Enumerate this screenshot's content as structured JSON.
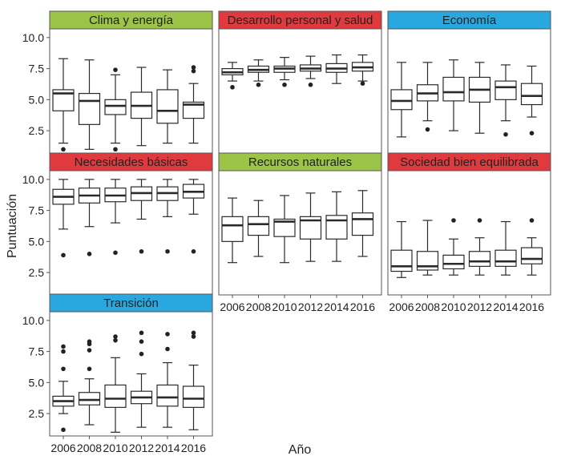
{
  "chart_data": {
    "type": "boxplot",
    "layout": "faceted-grid",
    "xlabel": "Año",
    "ylabel": "Puntuación",
    "x_categories": [
      "2006",
      "2008",
      "2010",
      "2012",
      "2014",
      "2016"
    ],
    "y_ticks": [
      "10.0",
      "7.5",
      "5.0",
      "2.5"
    ],
    "ylim": [
      0.7,
      10.7
    ],
    "colors": {
      "green": "#9bc449",
      "red": "#e03a3e",
      "blue": "#29a8e0",
      "panel_border": "#555555",
      "box_stroke": "#2a2a2a",
      "outlier": "#222222"
    },
    "panels": [
      {
        "title": "Clima y energía",
        "color": "green",
        "boxes": [
          {
            "year": "2006",
            "q1": 4.1,
            "median": 5.5,
            "q3": 5.8,
            "whisker_low": 1.5,
            "whisker_high": 8.3,
            "outliers": [
              1.0
            ]
          },
          {
            "year": "2008",
            "q1": 3.0,
            "median": 4.9,
            "q3": 5.5,
            "whisker_low": 1.0,
            "whisker_high": 8.2,
            "outliers": []
          },
          {
            "year": "2010",
            "q1": 3.8,
            "median": 4.5,
            "q3": 5.0,
            "whisker_low": 1.5,
            "whisker_high": 7.0,
            "outliers": [
              7.4,
              1.0
            ]
          },
          {
            "year": "2012",
            "q1": 3.5,
            "median": 4.5,
            "q3": 5.6,
            "whisker_low": 1.3,
            "whisker_high": 7.6,
            "outliers": []
          },
          {
            "year": "2014",
            "q1": 3.1,
            "median": 4.1,
            "q3": 5.8,
            "whisker_low": 1.5,
            "whisker_high": 7.4,
            "outliers": []
          },
          {
            "year": "2016",
            "q1": 3.5,
            "median": 4.6,
            "q3": 4.8,
            "whisker_low": 1.5,
            "whisker_high": 6.3,
            "outliers": [
              7.3,
              7.6
            ]
          }
        ]
      },
      {
        "title": "Desarrollo personal y salud",
        "color": "red",
        "boxes": [
          {
            "year": "2006",
            "q1": 7.0,
            "median": 7.2,
            "q3": 7.5,
            "whisker_low": 6.5,
            "whisker_high": 8.0,
            "outliers": [
              6.0
            ]
          },
          {
            "year": "2008",
            "q1": 7.2,
            "median": 7.4,
            "q3": 7.7,
            "whisker_low": 6.5,
            "whisker_high": 8.2,
            "outliers": [
              6.2
            ]
          },
          {
            "year": "2010",
            "q1": 7.2,
            "median": 7.5,
            "q3": 7.7,
            "whisker_low": 6.6,
            "whisker_high": 8.4,
            "outliers": [
              6.2
            ]
          },
          {
            "year": "2012",
            "q1": 7.3,
            "median": 7.5,
            "q3": 7.8,
            "whisker_low": 6.7,
            "whisker_high": 8.5,
            "outliers": [
              6.2
            ]
          },
          {
            "year": "2014",
            "q1": 7.2,
            "median": 7.5,
            "q3": 7.9,
            "whisker_low": 6.3,
            "whisker_high": 8.6,
            "outliers": []
          },
          {
            "year": "2016",
            "q1": 7.3,
            "median": 7.6,
            "q3": 8.0,
            "whisker_low": 6.5,
            "whisker_high": 8.6,
            "outliers": [
              6.3
            ]
          }
        ]
      },
      {
        "title": "Economía",
        "color": "blue",
        "boxes": [
          {
            "year": "2006",
            "q1": 4.2,
            "median": 4.9,
            "q3": 5.8,
            "whisker_low": 2.0,
            "whisker_high": 8.0,
            "outliers": []
          },
          {
            "year": "2008",
            "q1": 4.9,
            "median": 5.5,
            "q3": 6.2,
            "whisker_low": 3.3,
            "whisker_high": 8.0,
            "outliers": [
              2.6
            ]
          },
          {
            "year": "2010",
            "q1": 4.9,
            "median": 5.6,
            "q3": 6.8,
            "whisker_low": 2.5,
            "whisker_high": 8.2,
            "outliers": []
          },
          {
            "year": "2012",
            "q1": 4.8,
            "median": 5.8,
            "q3": 6.8,
            "whisker_low": 2.3,
            "whisker_high": 8.0,
            "outliers": []
          },
          {
            "year": "2014",
            "q1": 5.0,
            "median": 6.0,
            "q3": 6.5,
            "whisker_low": 3.3,
            "whisker_high": 7.8,
            "outliers": [
              2.2
            ]
          },
          {
            "year": "2016",
            "q1": 4.6,
            "median": 5.3,
            "q3": 6.3,
            "whisker_low": 3.6,
            "whisker_high": 7.7,
            "outliers": [
              2.3
            ]
          }
        ]
      },
      {
        "title": "Necesidades básicas",
        "color": "red",
        "boxes": [
          {
            "year": "2006",
            "q1": 8.0,
            "median": 8.6,
            "q3": 9.2,
            "whisker_low": 6.0,
            "whisker_high": 10.0,
            "outliers": [
              3.9
            ]
          },
          {
            "year": "2008",
            "q1": 8.1,
            "median": 8.7,
            "q3": 9.3,
            "whisker_low": 6.2,
            "whisker_high": 10.0,
            "outliers": [
              4.0
            ]
          },
          {
            "year": "2010",
            "q1": 8.2,
            "median": 8.7,
            "q3": 9.3,
            "whisker_low": 6.5,
            "whisker_high": 10.0,
            "outliers": [
              4.1
            ]
          },
          {
            "year": "2012",
            "q1": 8.3,
            "median": 8.9,
            "q3": 9.4,
            "whisker_low": 6.8,
            "whisker_high": 10.0,
            "outliers": [
              4.2
            ]
          },
          {
            "year": "2014",
            "q1": 8.3,
            "median": 8.9,
            "q3": 9.4,
            "whisker_low": 7.0,
            "whisker_high": 10.0,
            "outliers": [
              4.2
            ]
          },
          {
            "year": "2016",
            "q1": 8.5,
            "median": 9.0,
            "q3": 9.6,
            "whisker_low": 7.2,
            "whisker_high": 10.0,
            "outliers": [
              4.2
            ]
          }
        ]
      },
      {
        "title": "Recursos naturales",
        "color": "green",
        "boxes": [
          {
            "year": "2006",
            "q1": 5.0,
            "median": 6.3,
            "q3": 7.0,
            "whisker_low": 3.3,
            "whisker_high": 8.5,
            "outliers": []
          },
          {
            "year": "2008",
            "q1": 5.5,
            "median": 6.4,
            "q3": 7.0,
            "whisker_low": 3.8,
            "whisker_high": 8.3,
            "outliers": []
          },
          {
            "year": "2010",
            "q1": 5.4,
            "median": 6.6,
            "q3": 6.8,
            "whisker_low": 3.3,
            "whisker_high": 8.7,
            "outliers": []
          },
          {
            "year": "2012",
            "q1": 5.2,
            "median": 6.7,
            "q3": 7.0,
            "whisker_low": 3.4,
            "whisker_high": 8.9,
            "outliers": []
          },
          {
            "year": "2014",
            "q1": 5.2,
            "median": 6.7,
            "q3": 7.1,
            "whisker_low": 3.4,
            "whisker_high": 9.0,
            "outliers": []
          },
          {
            "year": "2016",
            "q1": 5.5,
            "median": 6.8,
            "q3": 7.3,
            "whisker_low": 3.8,
            "whisker_high": 9.1,
            "outliers": []
          }
        ]
      },
      {
        "title": "Sociedad bien equilibrada",
        "color": "red",
        "boxes": [
          {
            "year": "2006",
            "q1": 2.6,
            "median": 3.0,
            "q3": 4.3,
            "whisker_low": 2.1,
            "whisker_high": 6.6,
            "outliers": []
          },
          {
            "year": "2008",
            "q1": 2.7,
            "median": 3.0,
            "q3": 4.2,
            "whisker_low": 2.3,
            "whisker_high": 6.7,
            "outliers": []
          },
          {
            "year": "2010",
            "q1": 2.8,
            "median": 3.2,
            "q3": 3.9,
            "whisker_low": 2.3,
            "whisker_high": 5.2,
            "outliers": [
              6.7
            ]
          },
          {
            "year": "2012",
            "q1": 3.0,
            "median": 3.4,
            "q3": 4.2,
            "whisker_low": 2.3,
            "whisker_high": 5.3,
            "outliers": [
              6.7
            ]
          },
          {
            "year": "2014",
            "q1": 3.0,
            "median": 3.4,
            "q3": 4.3,
            "whisker_low": 2.3,
            "whisker_high": 6.6,
            "outliers": []
          },
          {
            "year": "2016",
            "q1": 3.2,
            "median": 3.6,
            "q3": 4.5,
            "whisker_low": 2.3,
            "whisker_high": 5.3,
            "outliers": [
              6.7
            ]
          }
        ]
      },
      {
        "title": "Transición",
        "color": "blue",
        "boxes": [
          {
            "year": "2006",
            "q1": 3.1,
            "median": 3.5,
            "q3": 3.9,
            "whisker_low": 2.5,
            "whisker_high": 5.1,
            "outliers": [
              6.1,
              7.5,
              7.9,
              1.2
            ]
          },
          {
            "year": "2008",
            "q1": 3.2,
            "median": 3.6,
            "q3": 4.2,
            "whisker_low": 1.6,
            "whisker_high": 5.3,
            "outliers": [
              6.1,
              7.6,
              8.1,
              8.3
            ]
          },
          {
            "year": "2010",
            "q1": 3.0,
            "median": 3.7,
            "q3": 4.8,
            "whisker_low": 1.0,
            "whisker_high": 7.0,
            "outliers": [
              8.4,
              8.7
            ]
          },
          {
            "year": "2012",
            "q1": 3.3,
            "median": 3.8,
            "q3": 4.3,
            "whisker_low": 1.4,
            "whisker_high": 5.7,
            "outliers": [
              7.3,
              8.3,
              9.0
            ]
          },
          {
            "year": "2014",
            "q1": 3.1,
            "median": 3.8,
            "q3": 4.8,
            "whisker_low": 1.4,
            "whisker_high": 6.6,
            "outliers": [
              7.7,
              8.9
            ]
          },
          {
            "year": "2016",
            "q1": 3.0,
            "median": 3.7,
            "q3": 4.7,
            "whisker_low": 1.2,
            "whisker_high": 6.4,
            "outliers": [
              8.7,
              9.0
            ]
          }
        ]
      }
    ]
  }
}
